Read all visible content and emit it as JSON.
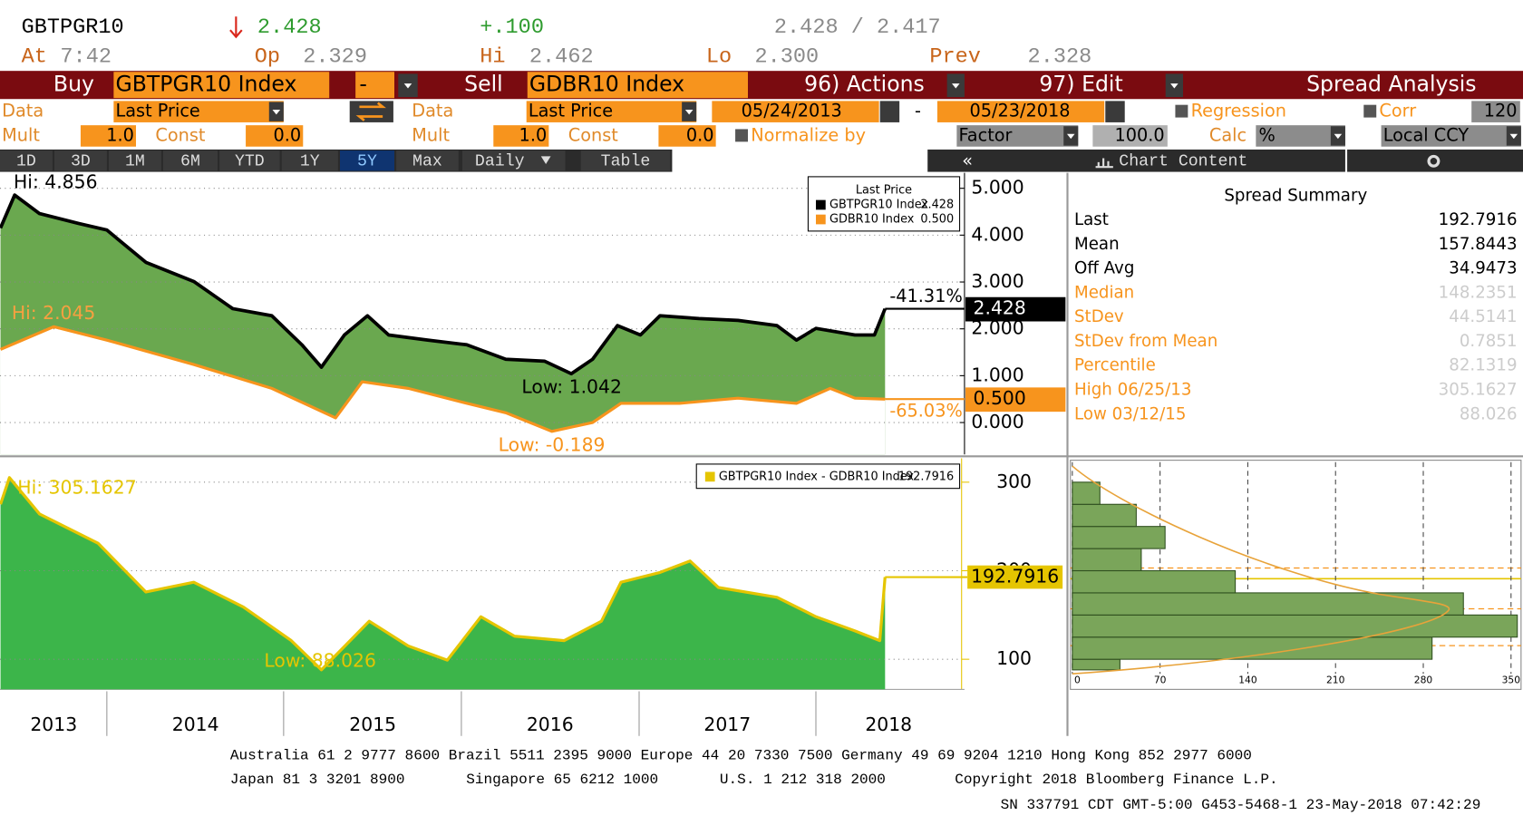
{
  "header": {
    "ticker": "GBTPGR10",
    "last": "2.428",
    "change": "+.100",
    "bid_ask": "2.428 / 2.417",
    "at_label": "At",
    "time": "7:42",
    "op_label": "Op",
    "open": "2.329",
    "hi_label": "Hi",
    "high": "2.462",
    "lo_label": "Lo",
    "low": "2.300",
    "prev_label": "Prev",
    "prev": "2.328"
  },
  "toolbar": {
    "buy": "Buy",
    "buy_security": "GBTPGR10 Index",
    "buy_op": "-",
    "sell": "Sell",
    "sell_security": "GDBR10 Index",
    "actions": "96) Actions",
    "edit": "97) Edit",
    "function": "Spread Analysis"
  },
  "settings": {
    "data_label_1": "Data",
    "data_1": "Last Price",
    "data_label_2": "Data",
    "data_2": "Last Price",
    "start_date": "05/24/2013",
    "date_sep": "-",
    "end_date": "05/23/2018",
    "regression": "Regression",
    "corr": "Corr",
    "corr_window": "120",
    "mult_label_1": "Mult",
    "mult_1": "1.0",
    "const_label_1": "Const",
    "const_1": "0.0",
    "mult_label_2": "Mult",
    "mult_2": "1.0",
    "const_label_2": "Const",
    "const_2": "0.0",
    "normalize": "Normalize by",
    "factor": "Factor",
    "factor_value": "100.0",
    "calc_label": "Calc",
    "calc": "%",
    "currency": "Local CCY"
  },
  "periods": [
    "1D",
    "3D",
    "1M",
    "6M",
    "YTD",
    "1Y",
    "5Y",
    "Max"
  ],
  "selected_period": "5Y",
  "frequency": "Daily",
  "table": "Table",
  "chart_content": "Chart Content",
  "chart_data": [
    {
      "type": "line",
      "legend_title": "Last Price",
      "fill": "#6aa84f",
      "grid": true,
      "xlim": [
        2013.397,
        2018.838
      ],
      "ylim": [
        -0.68,
        5.33
      ],
      "yticks": [
        {
          "value": 0,
          "label": "0.000"
        },
        {
          "value": 1,
          "label": "1.000"
        },
        {
          "value": 2,
          "label": "2.000"
        },
        {
          "value": 3,
          "label": "3.000"
        },
        {
          "value": 4,
          "label": "4.000"
        },
        {
          "value": 5,
          "label": "5.000"
        }
      ],
      "series": [
        {
          "name": "GBTPGR10 Index",
          "color": "#000000",
          "last_label": "2.428",
          "change_label": "-41.31%",
          "hi_label": "Hi: 4.856",
          "low_label": "Low: 1.042",
          "x": [
            2013.4,
            2013.48,
            2013.62,
            2013.84,
            2014.0,
            2014.22,
            2014.49,
            2014.71,
            2014.93,
            2015.1,
            2015.21,
            2015.34,
            2015.47,
            2015.59,
            2015.81,
            2016.03,
            2016.25,
            2016.47,
            2016.62,
            2016.74,
            2016.88,
            2017.01,
            2017.12,
            2017.34,
            2017.56,
            2017.78,
            2017.89,
            2018.0,
            2018.22,
            2018.33,
            2018.39
          ],
          "values": [
            4.15,
            4.856,
            4.46,
            4.25,
            4.11,
            3.42,
            3.01,
            2.43,
            2.28,
            1.66,
            1.18,
            1.87,
            2.28,
            1.87,
            1.76,
            1.66,
            1.35,
            1.31,
            1.042,
            1.35,
            2.07,
            1.87,
            2.28,
            2.22,
            2.18,
            2.07,
            1.76,
            2.01,
            1.87,
            1.87,
            2.428
          ]
        },
        {
          "name": "GDBR10 Index",
          "color": "#f7941d",
          "last_label": "0.500",
          "change_label": "-65.03%",
          "hi_label": "Hi: 2.045",
          "low_label": "Low: -0.189",
          "x": [
            2013.4,
            2013.7,
            2014.0,
            2014.49,
            2014.93,
            2015.29,
            2015.44,
            2015.7,
            2016.03,
            2016.25,
            2016.51,
            2016.74,
            2016.9,
            2017.23,
            2017.56,
            2017.89,
            2018.08,
            2018.22,
            2018.39
          ],
          "values": [
            1.56,
            2.045,
            1.76,
            1.24,
            0.73,
            0.1,
            0.87,
            0.73,
            0.41,
            0.21,
            -0.189,
            0.0,
            0.41,
            0.41,
            0.52,
            0.41,
            0.73,
            0.52,
            0.5
          ]
        }
      ]
    },
    {
      "type": "area",
      "grid": true,
      "xlim": [
        2013.397,
        2018.838
      ],
      "ylim": [
        66,
        327
      ],
      "yticks": [
        100,
        200,
        300
      ],
      "xticks": [
        {
          "value": 2013.7,
          "label": "2013"
        },
        {
          "value": 2014.5,
          "label": "2014"
        },
        {
          "value": 2015.5,
          "label": "2015"
        },
        {
          "value": 2016.5,
          "label": "2016"
        },
        {
          "value": 2017.5,
          "label": "2017"
        },
        {
          "value": 2018.41,
          "label": "2018"
        }
      ],
      "series": [
        {
          "name": "GBTPGR10 Index - GDBR10 Index",
          "color": "#e5c500",
          "fill": "#3cb54a",
          "last_label": "192.7916",
          "hi_label": "Hi: 305.1627",
          "low_label": "Low: 88.026",
          "x": [
            2013.4,
            2013.45,
            2013.62,
            2013.95,
            2014.22,
            2014.49,
            2014.77,
            2015.04,
            2015.21,
            2015.48,
            2015.7,
            2015.92,
            2016.11,
            2016.3,
            2016.58,
            2016.79,
            2016.9,
            2017.12,
            2017.29,
            2017.45,
            2017.78,
            2018.0,
            2018.22,
            2018.36,
            2018.39
          ],
          "values": [
            275,
            305.1627,
            264,
            231,
            176,
            187,
            159,
            121,
            88.026,
            143,
            115,
            99,
            148,
            126,
            121,
            143,
            187,
            198,
            211,
            181,
            170,
            148,
            132,
            121,
            192.7916
          ]
        }
      ]
    },
    {
      "type": "histogram",
      "orientation": "horizontal",
      "color": "#7aa55a",
      "bins": [
        88,
        100,
        125,
        150,
        175,
        200,
        225,
        250,
        275,
        300
      ],
      "values": [
        38,
        287,
        355,
        312,
        130,
        55,
        74,
        51,
        22
      ],
      "xlim": [
        0,
        358
      ],
      "xticks": [
        0,
        70,
        140,
        210,
        280,
        350
      ],
      "ylim": [
        66,
        327
      ]
    }
  ],
  "summary": {
    "title": "Spread Summary",
    "rows": [
      {
        "label": "Last",
        "value": "192.7916",
        "color": "#000000",
        "value_color": "#000000"
      },
      {
        "label": "Mean",
        "value": "157.8443",
        "color": "#000000",
        "value_color": "#000000"
      },
      {
        "label": "Off Avg",
        "value": "34.9473",
        "color": "#000000",
        "value_color": "#000000"
      },
      {
        "label": "Median",
        "value": "148.2351",
        "color": "#f7941d",
        "value_color": "#cccccc"
      },
      {
        "label": "StDev",
        "value": "44.5141",
        "color": "#f7941d",
        "value_color": "#cccccc"
      },
      {
        "label": "StDev from Mean",
        "value": "0.7851",
        "color": "#f7941d",
        "value_color": "#cccccc"
      },
      {
        "label": "Percentile",
        "value": "82.1319",
        "color": "#f7941d",
        "value_color": "#cccccc"
      },
      {
        "label": "High 06/25/13",
        "value": "305.1627",
        "color": "#f7941d",
        "value_color": "#cccccc"
      },
      {
        "label": "Low 03/12/15",
        "value": "88.026",
        "color": "#f7941d",
        "value_color": "#cccccc"
      }
    ]
  },
  "footer": [
    "Australia 61 2 9777 8600 Brazil 5511 2395 9000 Europe 44 20 7330 7500 Germany 49 69 9204 1210 Hong Kong 852 2977 6000",
    "Japan 81 3 3201 8900",
    "Singapore 65 6212 1000",
    "U.S. 1 212 318 2000",
    "Copyright 2018 Bloomberg Finance L.P.",
    "SN 337791 CDT  GMT-5:00 G453-5468-1 23-May-2018 07:42:29"
  ]
}
